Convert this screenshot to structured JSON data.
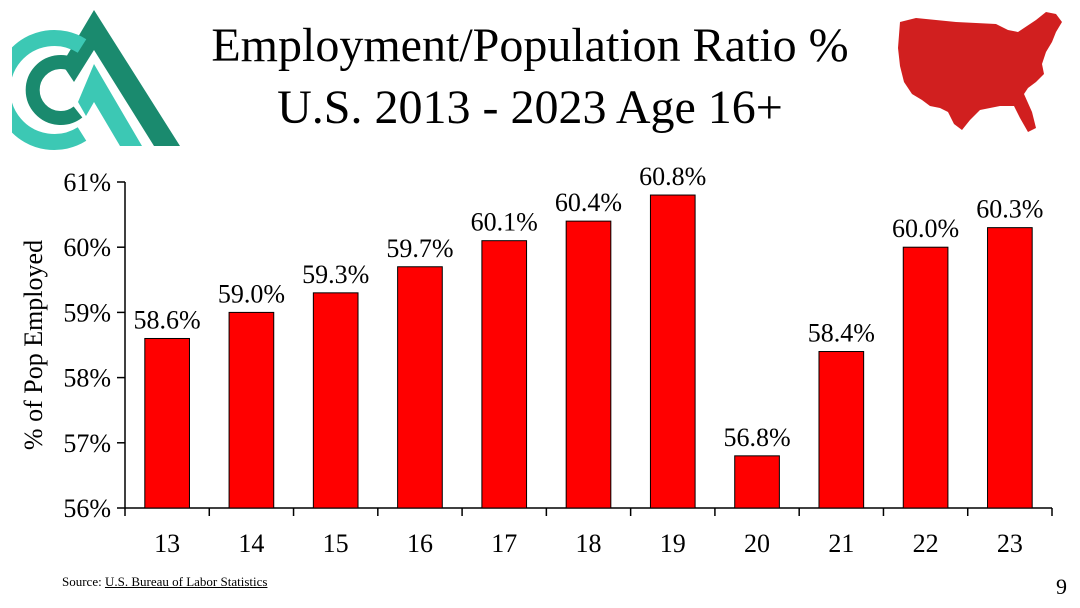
{
  "slide": {
    "title_line1": "Employment/Population Ratio %",
    "title_line2": "U.S. 2013 - 2023 Age 16+",
    "source_label": "Source:",
    "source_link": "U.S. Bureau of Labor Statistics",
    "page_number": "9"
  },
  "colors": {
    "bar": "#ff0000",
    "bar_stroke": "#000000",
    "logo_dark": "#1a8a6e",
    "logo_light": "#3cc8b4",
    "map": "#d11f1f"
  },
  "chart_data": {
    "type": "bar",
    "title": "Employment/Population Ratio % U.S. 2013 - 2023 Age 16+",
    "xlabel": "",
    "ylabel": "% of Pop Employed",
    "categories": [
      "13",
      "14",
      "15",
      "16",
      "17",
      "18",
      "19",
      "20",
      "21",
      "22",
      "23"
    ],
    "values": [
      58.6,
      59.0,
      59.3,
      59.7,
      60.1,
      60.4,
      60.8,
      56.8,
      58.4,
      60.0,
      60.3
    ],
    "data_labels": [
      "58.6%",
      "59.0%",
      "59.3%",
      "59.7%",
      "60.1%",
      "60.4%",
      "60.8%",
      "56.8%",
      "58.4%",
      "60.0%",
      "60.3%"
    ],
    "ylim": [
      56,
      61
    ],
    "yticks": [
      56,
      57,
      58,
      59,
      60,
      61
    ],
    "ytick_labels": [
      "56%",
      "57%",
      "58%",
      "59%",
      "60%",
      "61%"
    ],
    "grid": false,
    "legend": "none"
  }
}
